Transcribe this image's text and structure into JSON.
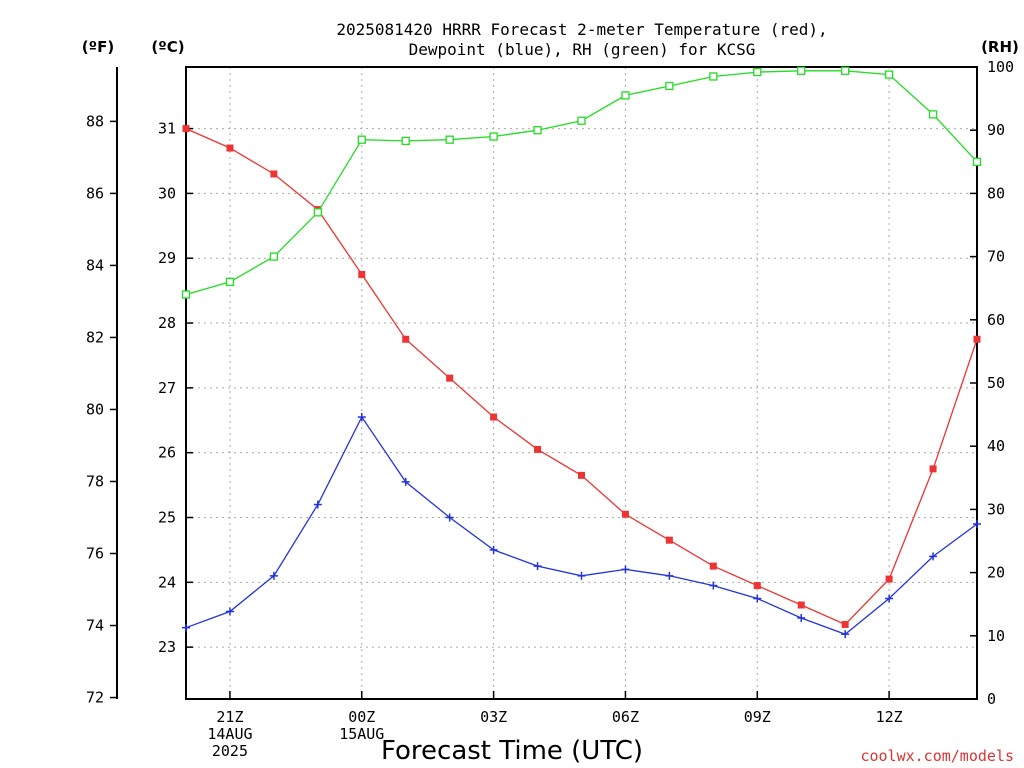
{
  "chart_data": {
    "type": "line",
    "title": [
      "2025081420 HRRR Forecast 2-meter Temperature (red),",
      "Dewpoint (blue), RH (green) for KCSG"
    ],
    "xlabel": "Forecast Time (UTC)",
    "credit": "coolwx.com/models",
    "units": {
      "fahrenheit": "(ºF)",
      "celsius": "(ºC)",
      "rh": "(RH)"
    },
    "x_hours": [
      20,
      21,
      22,
      23,
      24,
      25,
      26,
      27,
      28,
      29,
      30,
      31,
      32,
      33,
      34,
      35,
      36,
      37,
      38
    ],
    "x_ticks": [
      {
        "hour": 21,
        "lines": [
          "21Z",
          "14AUG",
          "2025"
        ]
      },
      {
        "hour": 24,
        "lines": [
          "00Z",
          "15AUG"
        ]
      },
      {
        "hour": 27,
        "lines": [
          "03Z"
        ]
      },
      {
        "hour": 30,
        "lines": [
          "06Z"
        ]
      },
      {
        "hour": 33,
        "lines": [
          "09Z"
        ]
      },
      {
        "hour": 36,
        "lines": [
          "12Z"
        ]
      }
    ],
    "xlim": [
      20,
      38
    ],
    "celsius_ticks": [
      "23",
      "24",
      "25",
      "26",
      "27",
      "28",
      "29",
      "30",
      "31"
    ],
    "fahrenheit_ticks": [
      "72",
      "74",
      "76",
      "78",
      "80",
      "82",
      "84",
      "86",
      "88"
    ],
    "rh_ticks": [
      "0",
      "10",
      "20",
      "30",
      "40",
      "50",
      "60",
      "70",
      "80",
      "90",
      "100"
    ],
    "ylim_celsius": [
      22.2,
      31.95
    ],
    "ylim_rh": [
      0,
      100
    ],
    "grid": true,
    "series": [
      {
        "name": "Temperature",
        "color": "#ee3333",
        "marker": "filled-square",
        "axis": "celsius",
        "values": [
          31.0,
          30.7,
          30.3,
          29.75,
          28.75,
          27.75,
          27.15,
          26.55,
          26.05,
          25.65,
          25.05,
          24.65,
          24.25,
          23.95,
          23.65,
          23.35,
          24.05,
          25.75,
          27.75
        ]
      },
      {
        "name": "Dewpoint",
        "color": "#2233dd",
        "marker": "plus",
        "axis": "celsius",
        "values": [
          23.3,
          23.55,
          24.1,
          25.2,
          26.55,
          25.55,
          25.0,
          24.5,
          24.25,
          24.1,
          24.2,
          24.1,
          23.95,
          23.75,
          23.45,
          23.2,
          23.75,
          24.4,
          24.9
        ]
      },
      {
        "name": "RH",
        "color": "#22dd22",
        "marker": "open-square",
        "axis": "rh",
        "values": [
          64,
          66,
          70,
          77,
          88.5,
          88.3,
          88.5,
          89,
          90,
          91.5,
          95.5,
          97,
          98.5,
          99.2,
          99.4,
          99.4,
          98.8,
          92.5,
          85
        ]
      }
    ]
  }
}
